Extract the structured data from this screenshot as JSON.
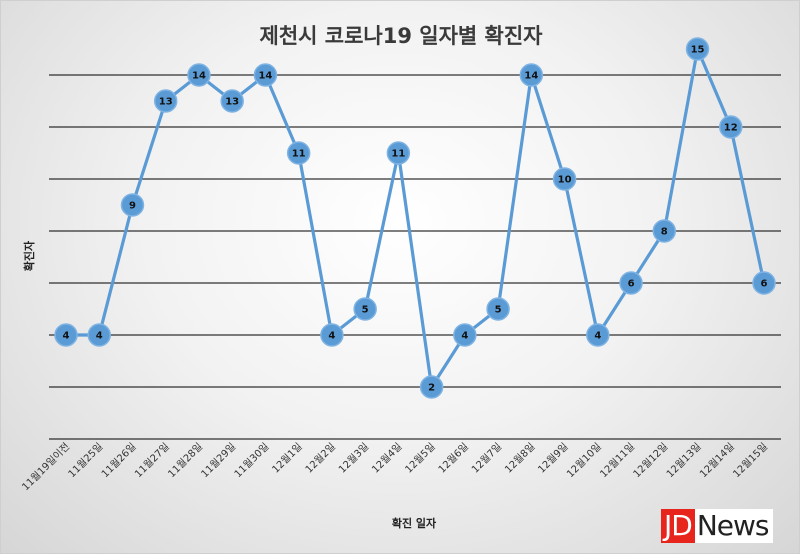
{
  "chart_data": {
    "type": "line",
    "title": "제천시 코로나19 일자별 확진자",
    "xlabel": "확진 일자",
    "ylabel": "확진자",
    "ylim": [
      0,
      16
    ],
    "grid": true,
    "categories": [
      "11월19일이전",
      "11월25일",
      "11월26일",
      "11월27일",
      "11월28일",
      "11월29일",
      "11월30일",
      "12월1일",
      "12월2일",
      "12월3일",
      "12월4일",
      "12월5일",
      "12월6일",
      "12월7일",
      "12월8일",
      "12월9일",
      "12월10일",
      "12월11일",
      "12월12일",
      "12월13일",
      "12월14일",
      "12월15일"
    ],
    "values": [
      4,
      4,
      9,
      13,
      14,
      13,
      14,
      11,
      4,
      5,
      11,
      2,
      4,
      5,
      14,
      10,
      4,
      6,
      8,
      15,
      12,
      6
    ],
    "colors": {
      "line": "#5b9bd5",
      "marker": "#5b9bd5",
      "marker_stroke": "#7fb3e3",
      "grid": "#000000"
    }
  },
  "logo": {
    "part1": "JD",
    "part2": "News"
  }
}
